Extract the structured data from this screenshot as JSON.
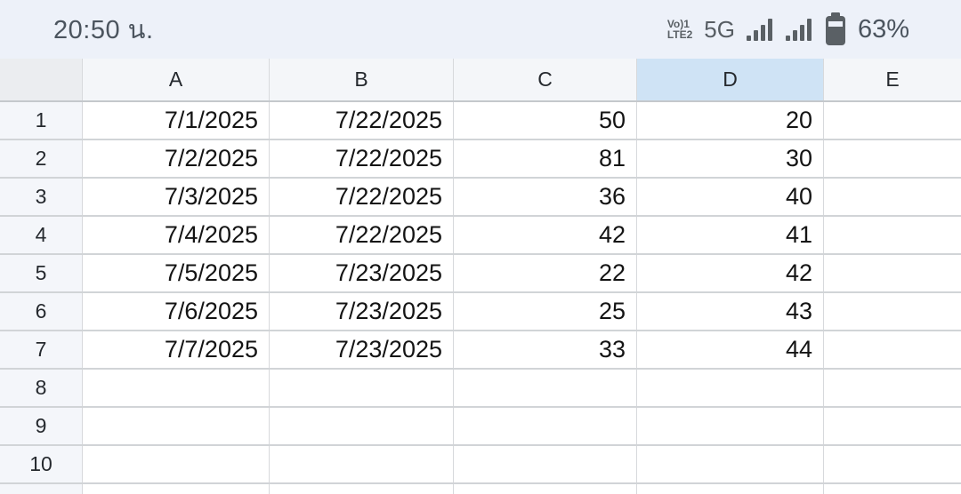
{
  "status_bar": {
    "time": "20:50 น.",
    "volte_line1": "Vo)1",
    "volte_line2": "LTE2",
    "network": "5G",
    "battery_percent": "63%"
  },
  "colors": {
    "status_bar_bg": "#edf1f9",
    "header_bg": "#f4f6f9",
    "selected_header_bg": "#cfe3f5",
    "grid_line": "#d1d4d7",
    "icon_gray": "#5a6065"
  },
  "sheet": {
    "columns": [
      "A",
      "B",
      "C",
      "D",
      "E"
    ],
    "selected_column": "D",
    "row_numbers": [
      "1",
      "2",
      "3",
      "4",
      "5",
      "6",
      "7",
      "8",
      "9",
      "10"
    ],
    "rows": [
      {
        "n": "1",
        "cells": [
          "7/1/2025",
          "7/22/2025",
          "50",
          "20",
          ""
        ]
      },
      {
        "n": "2",
        "cells": [
          "7/2/2025",
          "7/22/2025",
          "81",
          "30",
          ""
        ]
      },
      {
        "n": "3",
        "cells": [
          "7/3/2025",
          "7/22/2025",
          "36",
          "40",
          ""
        ]
      },
      {
        "n": "4",
        "cells": [
          "7/4/2025",
          "7/22/2025",
          "42",
          "41",
          ""
        ]
      },
      {
        "n": "5",
        "cells": [
          "7/5/2025",
          "7/23/2025",
          "22",
          "42",
          ""
        ]
      },
      {
        "n": "6",
        "cells": [
          "7/6/2025",
          "7/23/2025",
          "25",
          "43",
          ""
        ]
      },
      {
        "n": "7",
        "cells": [
          "7/7/2025",
          "7/23/2025",
          "33",
          "44",
          ""
        ]
      },
      {
        "n": "8",
        "cells": [
          "",
          "",
          "",
          "",
          ""
        ]
      },
      {
        "n": "9",
        "cells": [
          "",
          "",
          "",
          "",
          ""
        ]
      },
      {
        "n": "10",
        "cells": [
          "",
          "",
          "",
          "",
          ""
        ]
      }
    ]
  }
}
